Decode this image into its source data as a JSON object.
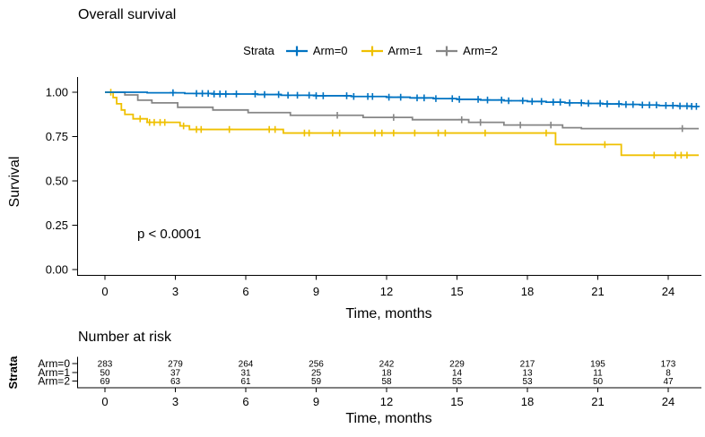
{
  "title": "Overall survival",
  "chart_data": {
    "type": "line",
    "subtype": "kaplan-meier-step",
    "title": "Overall survival",
    "xlabel": "Time, months",
    "ylabel": "Survival",
    "xlim": [
      -1.2,
      25.5
    ],
    "ylim": [
      0,
      1
    ],
    "grid": false,
    "xticks": [
      0,
      3,
      6,
      9,
      12,
      15,
      18,
      21,
      24
    ],
    "ytick_labels": [
      "0.00",
      "0.25",
      "0.50",
      "0.75",
      "1.00"
    ],
    "legend": {
      "label": "Strata",
      "position": "top"
    },
    "annotation": {
      "text": "p < 0.0001"
    },
    "curve_end_time": 25.3,
    "series": [
      {
        "name": "Arm=0",
        "color": "#0073C2",
        "steps": [
          [
            0,
            1.0
          ],
          [
            1.8,
            0.997
          ],
          [
            3.4,
            0.993
          ],
          [
            4.6,
            0.99
          ],
          [
            6.5,
            0.987
          ],
          [
            7.5,
            0.983
          ],
          [
            9.0,
            0.98
          ],
          [
            10.5,
            0.976
          ],
          [
            12.0,
            0.972
          ],
          [
            13.0,
            0.968
          ],
          [
            14.0,
            0.964
          ],
          [
            15.0,
            0.96
          ],
          [
            16.0,
            0.956
          ],
          [
            17.0,
            0.952
          ],
          [
            18.0,
            0.948
          ],
          [
            18.8,
            0.944
          ],
          [
            19.6,
            0.94
          ],
          [
            20.4,
            0.937
          ],
          [
            21.2,
            0.934
          ],
          [
            22.0,
            0.931
          ],
          [
            22.8,
            0.928
          ],
          [
            23.6,
            0.925
          ],
          [
            24.4,
            0.922
          ],
          [
            25.0,
            0.92
          ]
        ],
        "censor_times": [
          2.9,
          3.9,
          4.15,
          4.4,
          4.65,
          4.9,
          5.15,
          5.6,
          6.4,
          6.8,
          7.4,
          7.8,
          8.2,
          8.7,
          9.0,
          9.3,
          10.3,
          10.6,
          11.2,
          11.4,
          12.1,
          12.6,
          13.3,
          13.6,
          14.1,
          14.8,
          15.1,
          15.9,
          16.3,
          16.9,
          17.2,
          17.8,
          18.2,
          18.6,
          19.1,
          19.4,
          19.8,
          20.3,
          20.6,
          21.1,
          21.4,
          21.9,
          22.2,
          22.5,
          22.9,
          23.2,
          23.5,
          23.9,
          24.2,
          24.5,
          24.8,
          25.0,
          25.2
        ]
      },
      {
        "name": "Arm=1",
        "color": "#EFC000",
        "steps": [
          [
            0,
            1.0
          ],
          [
            0.35,
            0.97
          ],
          [
            0.5,
            0.935
          ],
          [
            0.7,
            0.9
          ],
          [
            0.85,
            0.875
          ],
          [
            1.2,
            0.85
          ],
          [
            1.8,
            0.83
          ],
          [
            3.2,
            0.81
          ],
          [
            3.6,
            0.79
          ],
          [
            7.6,
            0.77
          ],
          [
            19.2,
            0.705
          ],
          [
            22.0,
            0.645
          ]
        ],
        "censor_times": [
          0.25,
          1.5,
          1.9,
          2.1,
          2.35,
          2.55,
          3.35,
          3.9,
          4.1,
          5.3,
          7.0,
          7.25,
          8.5,
          8.7,
          9.7,
          10.0,
          11.5,
          11.8,
          12.3,
          13.2,
          14.2,
          14.5,
          16.2,
          18.8,
          21.3,
          23.4,
          24.3,
          24.55,
          24.8
        ]
      },
      {
        "name": "Arm=2",
        "color": "#868686",
        "steps": [
          [
            0,
            1.0
          ],
          [
            0.85,
            0.985
          ],
          [
            1.4,
            0.955
          ],
          [
            2.0,
            0.94
          ],
          [
            3.1,
            0.915
          ],
          [
            4.6,
            0.9
          ],
          [
            6.1,
            0.885
          ],
          [
            7.9,
            0.87
          ],
          [
            11.0,
            0.858
          ],
          [
            13.1,
            0.845
          ],
          [
            15.5,
            0.83
          ],
          [
            17.0,
            0.815
          ],
          [
            19.5,
            0.8
          ],
          [
            20.3,
            0.795
          ]
        ],
        "censor_times": [
          9.9,
          12.3,
          15.2,
          16.0,
          17.7,
          19.0,
          24.6
        ]
      }
    ],
    "risk_table": {
      "title": "Number at risk",
      "ylabel": "Strata",
      "xlabel": "Time, months",
      "times": [
        0,
        3,
        6,
        9,
        12,
        15,
        18,
        21,
        24
      ],
      "rows": [
        {
          "name": "Arm=0",
          "color": "#0073C2",
          "values": [
            283,
            279,
            264,
            256,
            242,
            229,
            217,
            195,
            173
          ]
        },
        {
          "name": "Arm=1",
          "color": "#EFC000",
          "values": [
            50,
            37,
            31,
            25,
            18,
            14,
            13,
            11,
            8
          ]
        },
        {
          "name": "Arm=2",
          "color": "#868686",
          "values": [
            69,
            63,
            61,
            59,
            58,
            55,
            53,
            50,
            47
          ]
        }
      ]
    }
  }
}
